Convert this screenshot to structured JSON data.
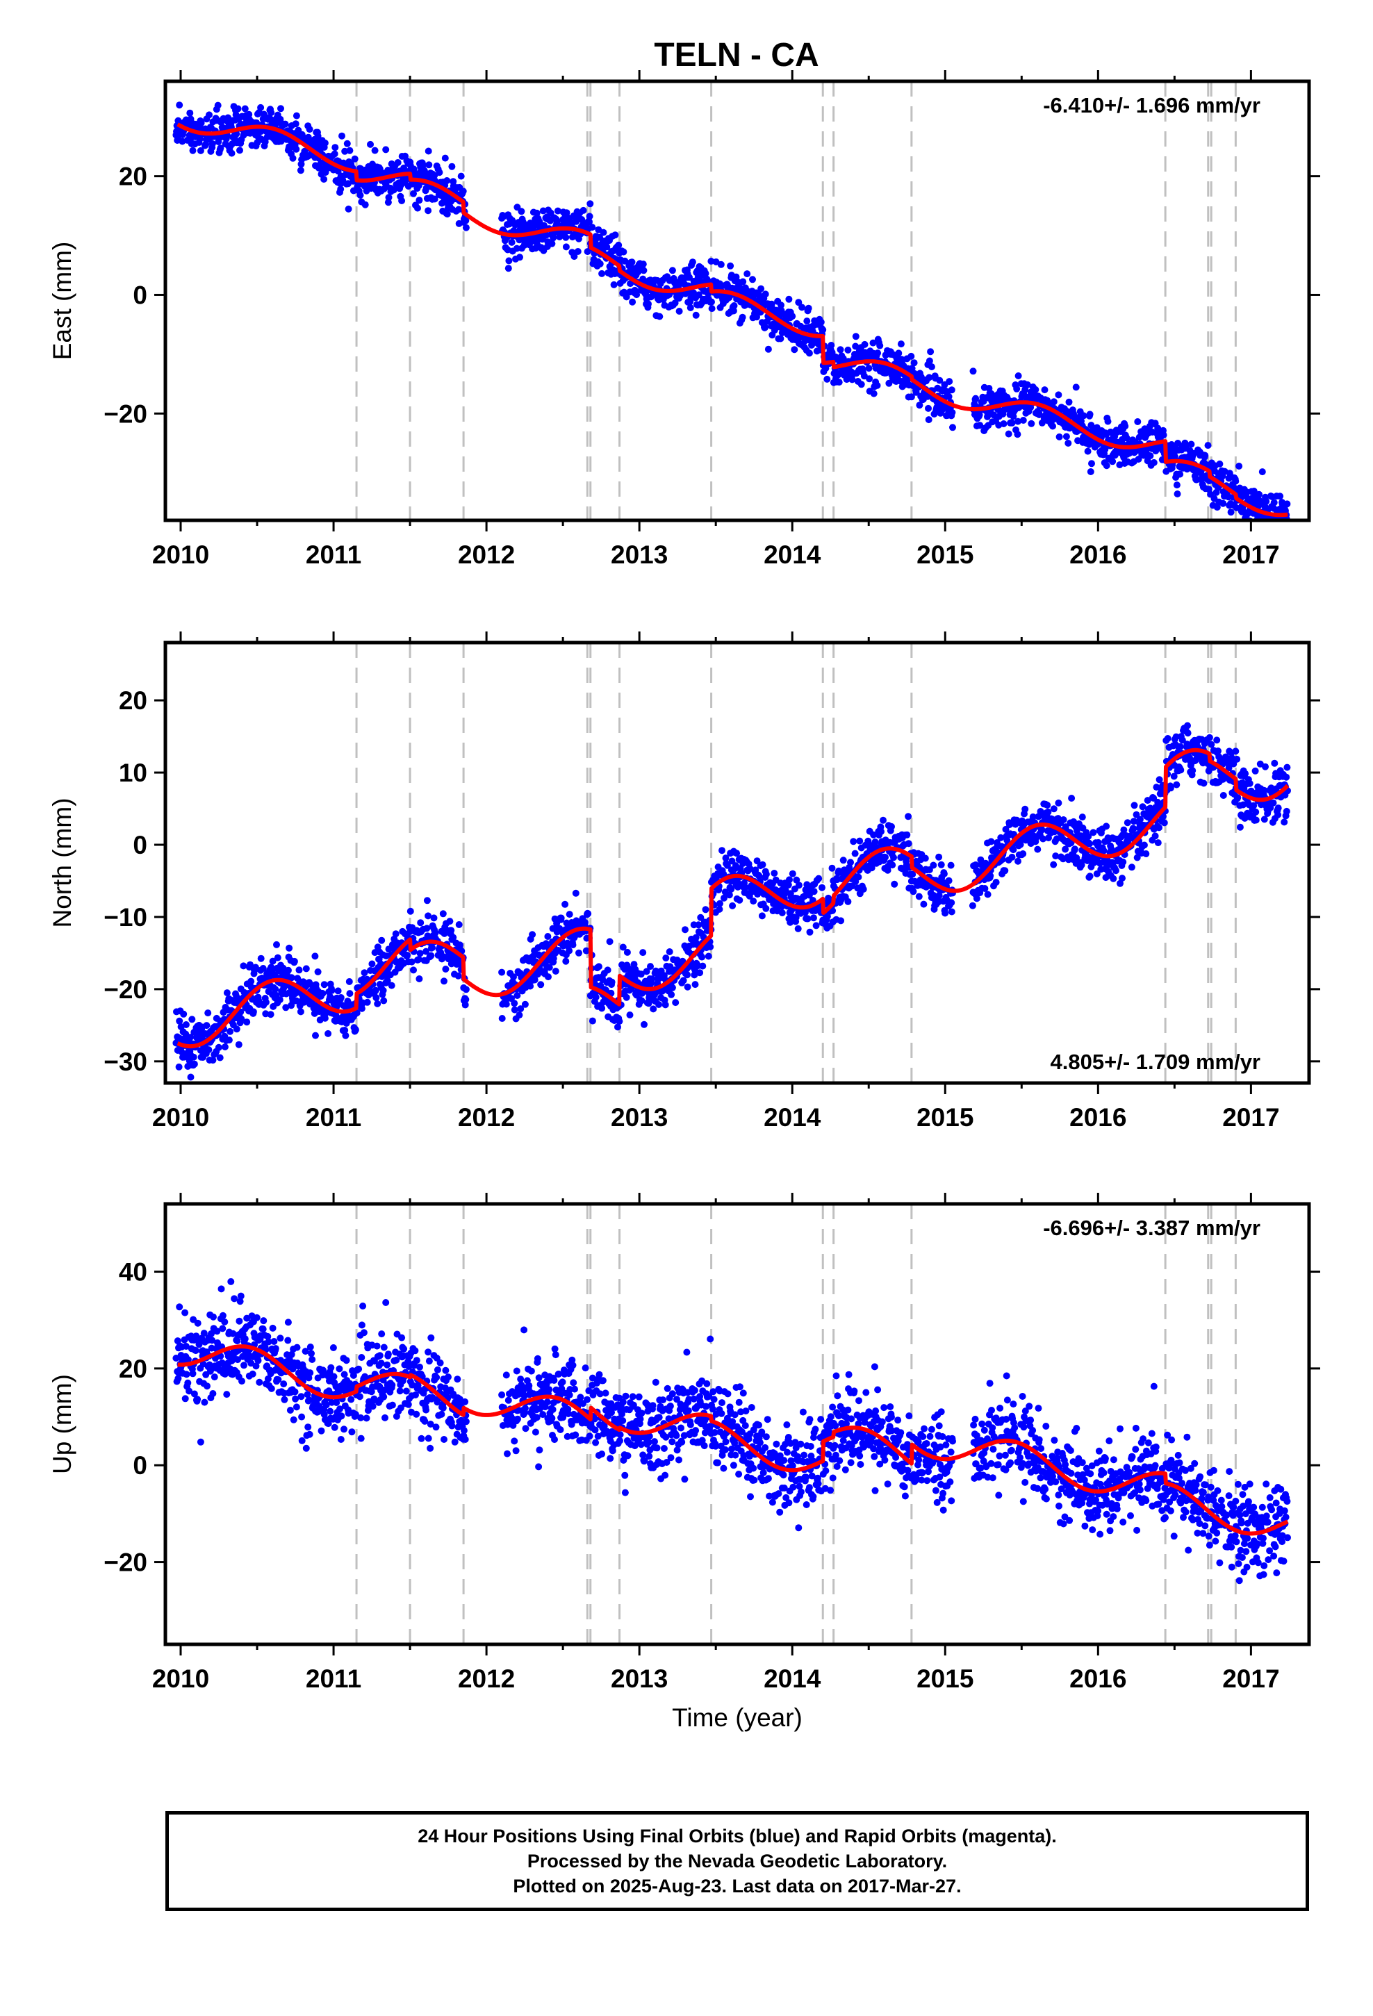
{
  "title": "TELN - CA",
  "chart_data": [
    {
      "type": "scatter",
      "panel": "east",
      "ylabel": "East (mm)",
      "xlabel": "",
      "rate_label": "-6.410+/- 1.696 mm/yr",
      "rate_placement": "top-right",
      "xlim": [
        2009.9,
        2017.38
      ],
      "ylim": [
        -38,
        36
      ],
      "xticks": [
        2010,
        2011,
        2012,
        2013,
        2014,
        2015,
        2016,
        2017
      ],
      "yticks": [
        -20,
        0,
        20
      ],
      "grid": false,
      "series": [
        {
          "role": "points",
          "color": "#0000ff"
        },
        {
          "role": "fit",
          "color": "#ff0000",
          "model": {
            "t0": 2010.0,
            "intercept": 30.0,
            "rate": -6.41,
            "annual_amp": 1.9,
            "annual_phase": 0.35
          },
          "offsets": [
            [
              2011.15,
              -1.5
            ],
            [
              2011.5,
              -1.0
            ],
            [
              2011.85,
              -1.8
            ],
            [
              2012.68,
              -2.2
            ],
            [
              2012.87,
              -0.8
            ],
            [
              2013.47,
              -1.2
            ],
            [
              2014.2,
              -4.5
            ],
            [
              2014.27,
              -0.9
            ],
            [
              2014.78,
              -0.5
            ],
            [
              2016.44,
              -3.5
            ],
            [
              2016.73,
              -0.9
            ],
            [
              2016.9,
              -0.6
            ]
          ]
        }
      ]
    },
    {
      "type": "scatter",
      "panel": "north",
      "ylabel": "North (mm)",
      "xlabel": "",
      "rate_label": "4.805+/- 1.709 mm/yr",
      "rate_placement": "bottom-right",
      "xlim": [
        2009.9,
        2017.38
      ],
      "ylim": [
        -33,
        28
      ],
      "xticks": [
        2010,
        2011,
        2012,
        2013,
        2014,
        2015,
        2016,
        2017
      ],
      "yticks": [
        -30,
        -20,
        -10,
        0,
        10,
        20
      ],
      "grid": false,
      "series": [
        {
          "role": "points",
          "color": "#0000ff"
        },
        {
          "role": "fit",
          "color": "#ff0000",
          "model": {
            "t0": 2010.0,
            "intercept": -25.0,
            "rate": 4.805,
            "annual_amp": 3.3,
            "annual_phase": 0.35
          },
          "offsets": [
            [
              2011.15,
              2.0
            ],
            [
              2011.5,
              -1.5
            ],
            [
              2011.85,
              -3.0
            ],
            [
              2012.68,
              -8.0
            ],
            [
              2012.87,
              4.0
            ],
            [
              2013.47,
              6.5
            ],
            [
              2014.2,
              -2.0
            ],
            [
              2014.27,
              1.0
            ],
            [
              2014.78,
              -1.5
            ],
            [
              2016.44,
              5.5
            ],
            [
              2016.73,
              -1.0
            ],
            [
              2016.9,
              -1.5
            ]
          ]
        }
      ]
    },
    {
      "type": "scatter",
      "panel": "up",
      "ylabel": "Up (mm)",
      "xlabel": "Time (year)",
      "rate_label": "-6.696+/- 3.387 mm/yr",
      "rate_placement": "top-right",
      "xlim": [
        2009.9,
        2017.38
      ],
      "ylim": [
        -37,
        54
      ],
      "xticks": [
        2010,
        2011,
        2012,
        2013,
        2014,
        2015,
        2016,
        2017
      ],
      "yticks": [
        -20,
        0,
        20,
        40
      ],
      "grid": false,
      "series": [
        {
          "role": "points",
          "color": "#0000ff"
        },
        {
          "role": "fit",
          "color": "#ff0000",
          "model": {
            "t0": 2010.0,
            "intercept": 24.0,
            "rate": -6.696,
            "annual_amp": 3.4,
            "annual_phase": 0.2
          },
          "offsets": [
            [
              2011.15,
              1.0
            ],
            [
              2011.5,
              0.5
            ],
            [
              2011.85,
              1.5
            ],
            [
              2012.68,
              2.5
            ],
            [
              2012.87,
              0.5
            ],
            [
              2013.47,
              -1.0
            ],
            [
              2014.2,
              4.0
            ],
            [
              2014.27,
              1.0
            ],
            [
              2014.78,
              4.0
            ],
            [
              2016.44,
              -2.0
            ],
            [
              2016.73,
              0.0
            ],
            [
              2016.9,
              0.0
            ]
          ]
        }
      ]
    }
  ],
  "event_lines": [
    2011.15,
    2011.5,
    2011.85,
    2012.66,
    2012.68,
    2012.87,
    2013.47,
    2014.2,
    2014.27,
    2014.78,
    2016.44,
    2016.72,
    2016.74,
    2016.9
  ],
  "data_gaps": [
    [
      2011.87,
      2012.1
    ],
    [
      2015.05,
      2015.18
    ]
  ],
  "data_end": 2017.24,
  "colors": {
    "points": "#0000ff",
    "fit": "#ff0000",
    "event_lines": "#c0c0c0",
    "axis": "#000000"
  },
  "caption": {
    "line1": "24 Hour Positions Using Final Orbits (blue) and Rapid Orbits (magenta).",
    "line2": "Processed by the Nevada Geodetic Laboratory.",
    "line3": "Plotted on 2025-Aug-23. Last data on 2017-Mar-27."
  }
}
